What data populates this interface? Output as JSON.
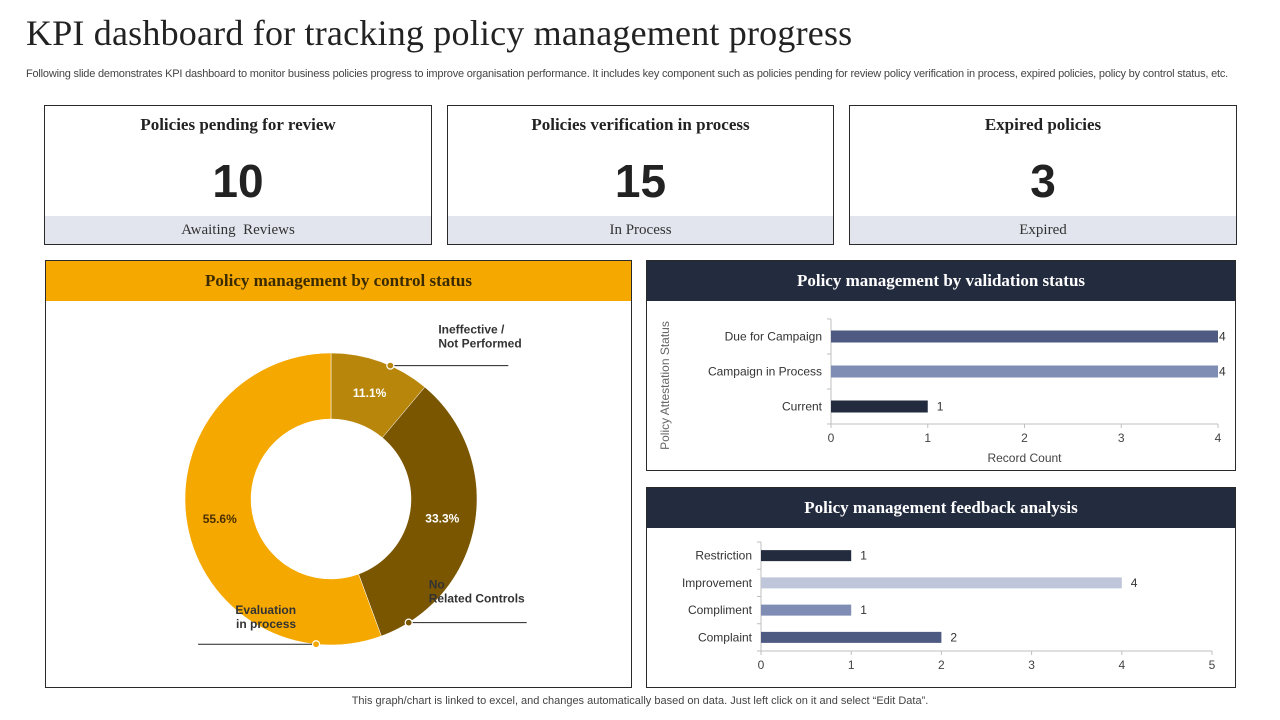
{
  "header": {
    "title": "KPI dashboard for tracking policy management progress",
    "subtitle": "Following slide demonstrates KPI dashboard to monitor business policies progress to improve organisation performance. It includes key component such as policies pending for review policy verification in process, expired policies, policy by control status, etc."
  },
  "kpis": [
    {
      "title": "Policies pending for review",
      "value": "10",
      "footer": "Awaiting  Reviews"
    },
    {
      "title": "Policies verification in process",
      "value": "15",
      "footer": "In Process"
    },
    {
      "title": "Expired policies",
      "value": "3",
      "footer": "Expired"
    }
  ],
  "panels": {
    "control_title": "Policy management by control status",
    "validation_title": "Policy management by validation status",
    "feedback_title": "Policy management feedback analysis"
  },
  "colors": {
    "gold": "#F5A800",
    "dark_gold": "#B8860B",
    "brown": "#7A5600",
    "navy": "#232b3e"
  },
  "chart_data": [
    {
      "type": "pie",
      "title": "Policy management by control status",
      "donut": true,
      "slices": [
        {
          "label_lines": [
            "Ineffective /",
            "Not Performed"
          ],
          "value": 11.1,
          "display": "11.1%",
          "color": "#B8860B"
        },
        {
          "label_lines": [
            "No",
            "Related Controls"
          ],
          "value": 33.3,
          "display": "33.3%",
          "color": "#7A5600"
        },
        {
          "label_lines": [
            "Evaluation",
            "in process"
          ],
          "value": 55.6,
          "display": "55.6%",
          "color": "#F5A800"
        }
      ]
    },
    {
      "type": "bar",
      "orientation": "horizontal",
      "title": "Policy management by validation status",
      "categories": [
        "Due for Campaign",
        "Campaign in Process",
        "Current"
      ],
      "values": [
        4,
        4,
        1
      ],
      "colors": [
        "#4e5a82",
        "#7f8db5",
        "#232b3e"
      ],
      "xlabel": "Record Count",
      "ylabel": "Policy Attestation Status",
      "xlim": [
        0,
        4
      ],
      "xticks": [
        "0",
        "1",
        "2",
        "3",
        "4"
      ]
    },
    {
      "type": "bar",
      "orientation": "horizontal",
      "title": "Policy management feedback analysis",
      "categories": [
        "Restriction",
        "Improvement",
        "Compliment",
        "Complaint"
      ],
      "values": [
        1,
        4,
        1,
        2
      ],
      "colors": [
        "#232b3e",
        "#bfc6da",
        "#7f8db5",
        "#4e5a82"
      ],
      "xlabel": "",
      "ylabel": "",
      "xlim": [
        0,
        5
      ],
      "xticks": [
        "0",
        "1",
        "2",
        "3",
        "4",
        "5"
      ]
    }
  ],
  "footer": {
    "note": "This graph/chart is linked to excel, and changes automatically based on data. Just left click on it and select “Edit Data”."
  }
}
